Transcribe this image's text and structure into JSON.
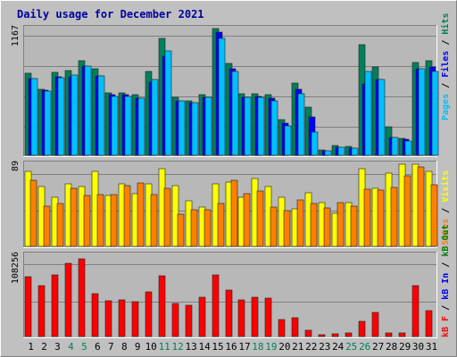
{
  "title": "Daily usage for December 2021",
  "colors": {
    "background": "#c0c0c0",
    "panel": "#b8b8b8",
    "title": "#0000a0",
    "hits": "#00805c",
    "files": "#0000ff",
    "pages": "#00c0ff",
    "visits": "#ffff00",
    "sites": "#ff8000",
    "kb_f": "#ff0000",
    "kb_in": "#0000ff",
    "kb_out": "#008000",
    "weekend_label": "#00805c",
    "weekday_label": "#000000"
  },
  "side_labels": {
    "top": [
      "Pages",
      "/",
      "Files",
      "/",
      "Hits"
    ],
    "middle": [
      "Sites",
      "/",
      "Visits"
    ],
    "bottom": [
      "kB F",
      "/",
      "kB In",
      "/",
      "kB Out"
    ]
  },
  "chart_data": [
    {
      "type": "bar",
      "name": "top",
      "max_label": "1167",
      "ylim": [
        0,
        1167
      ],
      "categories": [
        "1",
        "2",
        "3",
        "4",
        "5",
        "6",
        "7",
        "8",
        "9",
        "10",
        "11",
        "12",
        "13",
        "14",
        "15",
        "16",
        "17",
        "18",
        "19",
        "20",
        "21",
        "22",
        "23",
        "24",
        "25",
        "26",
        "27",
        "28",
        "29",
        "30",
        "31"
      ],
      "weekend_days": [
        "4",
        "5",
        "11",
        "12",
        "18",
        "19",
        "25",
        "26"
      ],
      "series": [
        {
          "name": "Hits",
          "color": "#00805c",
          "values": [
            755,
            605,
            765,
            780,
            875,
            795,
            575,
            575,
            555,
            775,
            1077,
            535,
            505,
            555,
            1167,
            850,
            565,
            565,
            555,
            325,
            665,
            445,
            50,
            90,
            80,
            1017,
            815,
            265,
            155,
            855,
            875
          ]
        },
        {
          "name": "Files",
          "color": "#0000ff",
          "values": [
            710,
            600,
            720,
            720,
            825,
            735,
            555,
            555,
            525,
            675,
            910,
            505,
            485,
            535,
            1137,
            800,
            535,
            545,
            525,
            295,
            605,
            355,
            40,
            75,
            65,
            655,
            695,
            165,
            145,
            795,
            815
          ]
        },
        {
          "name": "Pages",
          "color": "#00c0ff",
          "values": [
            705,
            595,
            715,
            740,
            825,
            735,
            545,
            545,
            525,
            695,
            965,
            505,
            485,
            535,
            1077,
            775,
            535,
            535,
            505,
            275,
            565,
            215,
            40,
            75,
            65,
            775,
            695,
            165,
            135,
            795,
            775
          ]
        }
      ]
    },
    {
      "type": "bar",
      "name": "middle",
      "max_label": "89",
      "ylim": [
        0,
        89
      ],
      "categories": [
        "1",
        "2",
        "3",
        "4",
        "5",
        "6",
        "7",
        "8",
        "9",
        "10",
        "11",
        "12",
        "13",
        "14",
        "15",
        "16",
        "17",
        "18",
        "19",
        "20",
        "21",
        "22",
        "23",
        "24",
        "25",
        "26",
        "27",
        "28",
        "29",
        "30",
        "31"
      ],
      "series": [
        {
          "name": "Visits",
          "color": "#ffff00",
          "values": [
            81,
            65,
            53,
            68,
            65,
            81,
            55,
            68,
            57,
            68,
            84,
            66,
            49,
            43,
            68,
            70,
            53,
            74,
            65,
            53,
            41,
            58,
            47,
            36,
            47,
            84,
            63,
            79,
            89,
            89,
            81
          ]
        },
        {
          "name": "Sites",
          "color": "#ff8000",
          "values": [
            72,
            44,
            46,
            63,
            55,
            56,
            56,
            66,
            69,
            56,
            63,
            35,
            40,
            40,
            46,
            72,
            57,
            60,
            43,
            39,
            50,
            46,
            42,
            47,
            44,
            62,
            61,
            64,
            76,
            86,
            67
          ]
        }
      ]
    },
    {
      "type": "bar",
      "name": "bottom",
      "max_label": "108256",
      "ylim": [
        0,
        108256
      ],
      "categories": [
        "1",
        "2",
        "3",
        "4",
        "5",
        "6",
        "7",
        "8",
        "9",
        "10",
        "11",
        "12",
        "13",
        "14",
        "15",
        "16",
        "17",
        "18",
        "19",
        "20",
        "21",
        "22",
        "23",
        "24",
        "25",
        "26",
        "27",
        "28",
        "29",
        "30",
        "31"
      ],
      "series": [
        {
          "name": "kB F",
          "color": "#ff0000",
          "values": [
            79900,
            68000,
            82000,
            97000,
            104000,
            57000,
            47900,
            49000,
            46700,
            59300,
            80300,
            44500,
            41600,
            52700,
            82000,
            62000,
            49000,
            52700,
            51300,
            22800,
            24800,
            8300,
            2700,
            3700,
            4300,
            20000,
            32000,
            4300,
            4300,
            68000,
            34000
          ]
        },
        {
          "name": "kB In",
          "color": "#0000ff",
          "values": [
            0,
            0,
            0,
            0,
            0,
            0,
            0,
            0,
            0,
            0,
            0,
            0,
            0,
            0,
            0,
            0,
            0,
            0,
            0,
            0,
            0,
            0,
            0,
            0,
            0,
            0,
            0,
            0,
            0,
            0,
            0
          ]
        },
        {
          "name": "kB Out",
          "color": "#008000",
          "values": [
            0,
            0,
            0,
            0,
            0,
            0,
            0,
            0,
            0,
            0,
            0,
            0,
            0,
            0,
            0,
            0,
            0,
            0,
            0,
            0,
            0,
            0,
            0,
            0,
            0,
            0,
            0,
            0,
            0,
            0,
            0
          ]
        }
      ]
    }
  ]
}
